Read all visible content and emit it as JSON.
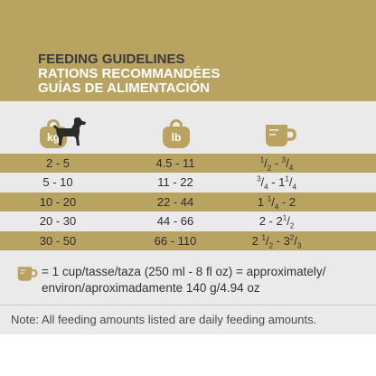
{
  "header": {
    "title_en": "FEEDING GUIDELINES",
    "title_fr": "RATIONS RECOMMANDÉES",
    "title_es": "GUÍAS DE ALIMENTACIÓN"
  },
  "icons": {
    "kg_label": "kg",
    "lb_label": "lb",
    "dog_icon": "dog-icon",
    "cup_icon": "cup-icon"
  },
  "colors": {
    "gold": "#b8a360",
    "light": "#ebeaea"
  },
  "rows": [
    {
      "kg": "2 - 5",
      "lb": "4.5 - 11",
      "cups": [
        "1",
        "2",
        " - ",
        "3",
        "4"
      ]
    },
    {
      "kg": "5 - 10",
      "lb": "11 - 22",
      "cups": [
        "3",
        "4",
        " - 1",
        "1",
        "4"
      ]
    },
    {
      "kg": "10 - 20",
      "lb": "22 - 44",
      "cups": [
        "1 ",
        "1",
        "4",
        " - 2"
      ]
    },
    {
      "kg": "20 - 30",
      "lb": "44 - 66",
      "cups": [
        "2 - 2",
        "1",
        "2"
      ]
    },
    {
      "kg": "30 - 50",
      "lb": "66 - 110",
      "cups": [
        "2",
        "1",
        "2",
        " - 3",
        "2",
        "3"
      ]
    }
  ],
  "cup_note": {
    "line1": "= 1 cup/tasse/taza (250 ml - 8 fl oz) = approximately/",
    "line2": "environ/aproximadamente 140 g/4.94 oz"
  },
  "footer_note": "Note: All feeding amounts listed are daily feeding amounts."
}
